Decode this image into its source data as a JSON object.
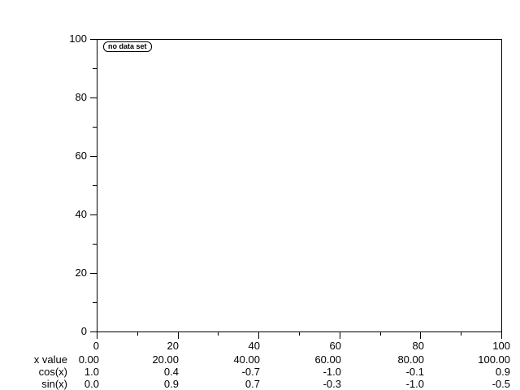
{
  "colors": {
    "background": "#ffffff",
    "foreground": "#000000"
  },
  "legend": {
    "label": "no data set"
  },
  "y_axis": {
    "tick_labels": [
      "100",
      "80",
      "60",
      "40",
      "20",
      "0"
    ]
  },
  "x_axis": {
    "tick_labels": [
      "0",
      "20",
      "40",
      "60",
      "80",
      "100"
    ]
  },
  "table": {
    "row_labels": [
      "x value",
      "cos(x)",
      "sin(x)"
    ],
    "rows": [
      [
        "0.00",
        "20.00",
        "40.00",
        "60.00",
        "80.00",
        "100.00"
      ],
      [
        "1.0",
        "0.4",
        "-0.7",
        "-1.0",
        "-0.1",
        "0.9"
      ],
      [
        "0.0",
        "0.9",
        "0.7",
        "-0.3",
        "-1.0",
        "-0.5"
      ]
    ]
  },
  "chart_data": {
    "type": "table",
    "title": "",
    "plot_empty": true,
    "legend_entries": [
      "no data set"
    ],
    "legend_position": "top-left",
    "grid": false,
    "xlim": [
      0,
      100
    ],
    "ylim": [
      0,
      100
    ],
    "x_ticks": [
      0,
      20,
      40,
      60,
      80,
      100
    ],
    "y_ticks": [
      0,
      20,
      40,
      60,
      80,
      100
    ],
    "categories": [
      0,
      20,
      40,
      60,
      80,
      100
    ],
    "series": [
      {
        "name": "x value",
        "values": [
          0.0,
          20.0,
          40.0,
          60.0,
          80.0,
          100.0
        ]
      },
      {
        "name": "cos(x)",
        "values": [
          1.0,
          0.4,
          -0.7,
          -1.0,
          -0.1,
          0.9
        ]
      },
      {
        "name": "sin(x)",
        "values": [
          0.0,
          0.9,
          0.7,
          -0.3,
          -1.0,
          -0.5
        ]
      }
    ]
  }
}
